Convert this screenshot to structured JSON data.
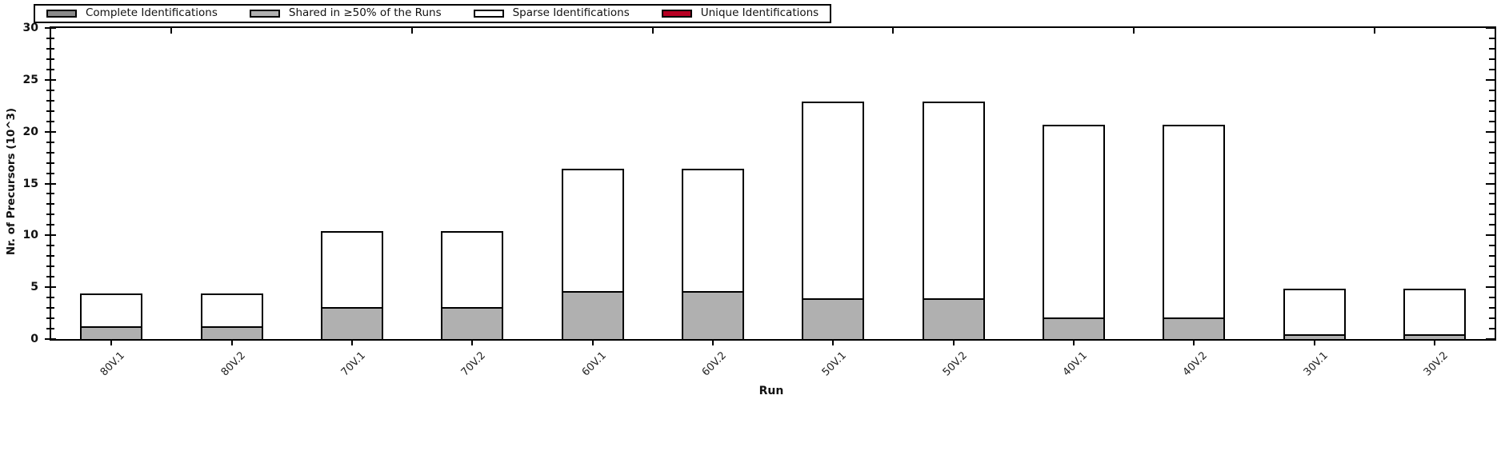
{
  "chart_data": {
    "type": "bar",
    "stacked": true,
    "title": "",
    "xlabel": "Run",
    "ylabel": "Nr. of Precursors (10^3)",
    "ylim": [
      0,
      30
    ],
    "y_major_ticks": [
      0,
      5,
      10,
      15,
      20,
      25,
      30
    ],
    "y_minor_step": 1,
    "grid": false,
    "legend_position": "top-left",
    "bar_outline_color": "#000000",
    "categories": [
      "80V.1",
      "80V.2",
      "70V.1",
      "70V.2",
      "60V.1",
      "60V.2",
      "50V.1",
      "50V.2",
      "40V.1",
      "40V.2",
      "30V.1",
      "30V.2"
    ],
    "series": [
      {
        "name": "Complete Identifications",
        "color": "#8a8a8a",
        "values": [
          0,
          0,
          0,
          0,
          0,
          0,
          0,
          0,
          0,
          0,
          0,
          0
        ]
      },
      {
        "name": "Shared in ≥50% of the Runs",
        "color": "#b0b0b0",
        "values": [
          1.2,
          1.2,
          3.1,
          3.1,
          4.6,
          4.6,
          3.9,
          3.9,
          2.1,
          2.1,
          0.45,
          0.45
        ]
      },
      {
        "name": "Sparse Identifications",
        "color": "#ffffff",
        "values": [
          3.2,
          3.2,
          7.3,
          7.3,
          11.8,
          11.8,
          19.0,
          19.0,
          18.6,
          18.6,
          4.4,
          4.4
        ]
      },
      {
        "name": "Unique Identifications",
        "color": "#b70023",
        "values": [
          0,
          0,
          0,
          0,
          0,
          0,
          0,
          0,
          0,
          0,
          0,
          0
        ]
      }
    ],
    "stacked_totals": [
      4.4,
      4.4,
      10.4,
      10.4,
      16.4,
      16.4,
      22.9,
      22.9,
      20.7,
      20.7,
      4.85,
      4.85
    ]
  },
  "axes": {
    "x_title": "Run",
    "y_title": "Nr. of Precursors (10^3)"
  }
}
